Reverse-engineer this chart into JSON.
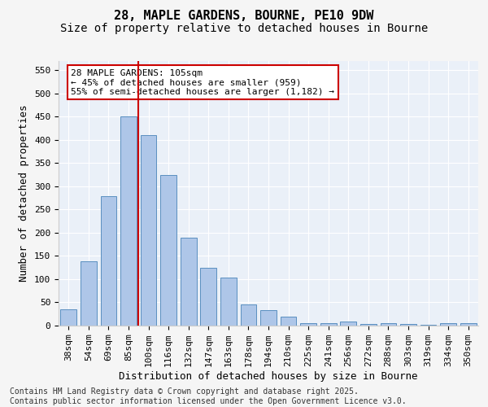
{
  "title_line1": "28, MAPLE GARDENS, BOURNE, PE10 9DW",
  "title_line2": "Size of property relative to detached houses in Bourne",
  "xlabel": "Distribution of detached houses by size in Bourne",
  "ylabel": "Number of detached properties",
  "categories": [
    "38sqm",
    "54sqm",
    "69sqm",
    "85sqm",
    "100sqm",
    "116sqm",
    "132sqm",
    "147sqm",
    "163sqm",
    "178sqm",
    "194sqm",
    "210sqm",
    "225sqm",
    "241sqm",
    "256sqm",
    "272sqm",
    "288sqm",
    "303sqm",
    "319sqm",
    "334sqm",
    "350sqm"
  ],
  "values": [
    35,
    138,
    278,
    450,
    410,
    325,
    190,
    125,
    103,
    45,
    33,
    20,
    6,
    6,
    8,
    3,
    5,
    4,
    2,
    5,
    5
  ],
  "bar_color": "#aec6e8",
  "bar_edgecolor": "#5a8fc0",
  "vline_x_index": 4,
  "vline_color": "#cc0000",
  "annotation_text": "28 MAPLE GARDENS: 105sqm\n← 45% of detached houses are smaller (959)\n55% of semi-detached houses are larger (1,182) →",
  "annotation_box_color": "#ffffff",
  "annotation_box_edgecolor": "#cc0000",
  "ylim": [
    0,
    570
  ],
  "yticks": [
    0,
    50,
    100,
    150,
    200,
    250,
    300,
    350,
    400,
    450,
    500,
    550
  ],
  "background_color": "#eaf0f8",
  "grid_color": "#ffffff",
  "footer_line1": "Contains HM Land Registry data © Crown copyright and database right 2025.",
  "footer_line2": "Contains public sector information licensed under the Open Government Licence v3.0.",
  "title_fontsize": 11,
  "subtitle_fontsize": 10,
  "axis_label_fontsize": 9,
  "tick_fontsize": 8,
  "annotation_fontsize": 8,
  "footer_fontsize": 7,
  "fig_facecolor": "#f5f5f5"
}
